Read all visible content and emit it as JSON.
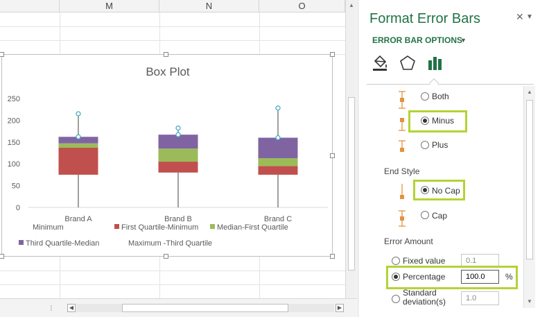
{
  "sheet": {
    "columns": [
      "M",
      "N",
      "O"
    ]
  },
  "chart_data": {
    "type": "bar",
    "stacked": true,
    "title": "Box Plot",
    "categories": [
      "Brand A",
      "Brand B",
      "Brand C"
    ],
    "ylim": [
      0,
      250
    ],
    "yticks": [
      0,
      50,
      100,
      150,
      200,
      250
    ],
    "series": [
      {
        "name": "Minimum",
        "values": [
          75,
          80,
          75
        ],
        "color": "none"
      },
      {
        "name": "First Quartile-Minimum",
        "values": [
          62,
          25,
          20
        ],
        "color": "#c0504d"
      },
      {
        "name": "Median-First Quartile",
        "values": [
          10,
          30,
          18
        ],
        "color": "#9bbb59"
      },
      {
        "name": "Third Quartile-Median",
        "values": [
          15,
          32,
          47
        ],
        "color": "#8064a2"
      },
      {
        "name": "Maximum -Third Quartile",
        "values": [
          53,
          15,
          68
        ],
        "color": "none"
      }
    ],
    "legend_position": "bottom",
    "grid": false
  },
  "pane": {
    "title": "Format Error Bars",
    "tab_label": "ERROR BAR OPTIONS",
    "direction": {
      "options": [
        {
          "label": "Both",
          "selected": false
        },
        {
          "label": "Minus",
          "selected": true
        },
        {
          "label": "Plus",
          "selected": false
        }
      ]
    },
    "end_style": {
      "heading": "End Style",
      "options": [
        {
          "label": "No Cap",
          "selected": true
        },
        {
          "label": "Cap",
          "selected": false
        }
      ]
    },
    "error_amount": {
      "heading": "Error Amount",
      "fixed_label": "Fixed value",
      "fixed_value": "0.1",
      "percentage_label": "Percentage",
      "percentage_value": "100.0",
      "percentage_unit": "%",
      "stddev_label": "Standard deviation(s)",
      "stddev_value": "1.0"
    }
  },
  "colors": {
    "accent": "#217346",
    "highlight": "#b3d334",
    "marker": "#4bacc6"
  }
}
